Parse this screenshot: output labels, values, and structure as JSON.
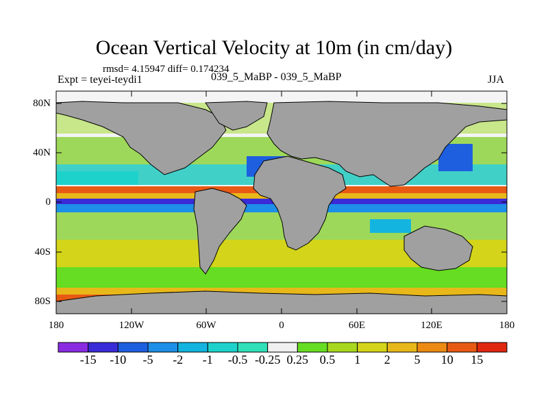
{
  "title": "Ocean Vertical Velocity at 10m (in cm/day)",
  "stats_line": "rmsd= 4.15947 diff= 0.174234",
  "experiment_label": "Expt = teyei-teydi1",
  "center_label": "039_5_MaBP - 039_5_MaBP",
  "season_label": "JJA",
  "map": {
    "lat_ticks": [
      "80N",
      "40N",
      "0",
      "40S",
      "80S"
    ],
    "lon_ticks": [
      "180",
      "120W",
      "60W",
      "0",
      "60E",
      "120E",
      "180"
    ],
    "land_color": "#a0a0a0"
  },
  "colorbar": {
    "labels": [
      "-15",
      "-10",
      "-5",
      "-2",
      "-1",
      "-0.5",
      "-0.25",
      "0.25",
      "0.5",
      "1",
      "2",
      "5",
      "10",
      "15"
    ],
    "colors": [
      "#8a2be2",
      "#3a2bd8",
      "#1e5fe0",
      "#1e8fe8",
      "#14b4e0",
      "#1ed2cc",
      "#30e0b8",
      "#f0f0f0",
      "#66dd22",
      "#a8d81e",
      "#d4d41a",
      "#e8b81a",
      "#ec8a14",
      "#e85a14",
      "#e02810"
    ]
  }
}
